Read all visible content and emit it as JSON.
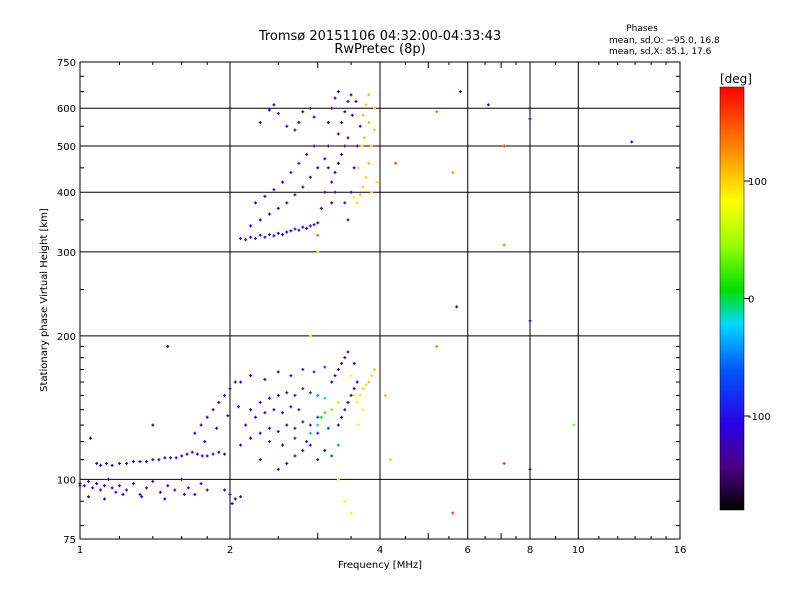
{
  "chart_data": {
    "type": "scatter",
    "title": "Tromsø 20151106 04:32:00-04:33:43",
    "subtitle": "RwPretec (8p)",
    "xlabel": "Frequency [MHz]",
    "ylabel": "Stationary phase Virtual Height [km]",
    "x_scale": "log",
    "y_scale": "log",
    "xlim": [
      1,
      16
    ],
    "ylim": [
      75,
      750
    ],
    "x_ticks": [
      1,
      2,
      4,
      6,
      8,
      10,
      16
    ],
    "x_tick_labels": [
      "1",
      "2",
      "4",
      "6",
      "8",
      "10",
      "16"
    ],
    "x_minor_ticks": [
      3,
      5,
      7
    ],
    "y_ticks": [
      75,
      100,
      200,
      300,
      400,
      500,
      600,
      750
    ],
    "y_tick_labels": [
      "75",
      "100",
      "200",
      "300",
      "400",
      "500",
      "600",
      "750"
    ],
    "grid": true,
    "stats": {
      "title": "Phases",
      "line1": "mean, sd,O: −95.0, 16.8",
      "line2": "mean, sd,X:  85.1, 17.6"
    },
    "colorbar": {
      "label": "[deg]",
      "range": [
        -180,
        180
      ],
      "ticks": [
        100,
        0,
        -100
      ],
      "tick_labels": [
        "100",
        "0",
        "-100"
      ],
      "colormap": "rainbow: black-purple-blue-cyan-green-yellow-orange-red"
    },
    "point_encoding": "[frequency_MHz, virtual_height_km, phase_deg]",
    "points": [
      [
        1.0,
        98,
        -110
      ],
      [
        1.02,
        97,
        -108
      ],
      [
        1.04,
        99,
        -112
      ],
      [
        1.06,
        96,
        -105
      ],
      [
        1.08,
        98,
        -110
      ],
      [
        1.1,
        95,
        -100
      ],
      [
        1.12,
        97,
        -115
      ],
      [
        1.14,
        100,
        -108
      ],
      [
        1.16,
        96,
        -112
      ],
      [
        1.18,
        94,
        -104
      ],
      [
        1.2,
        97,
        -110
      ],
      [
        1.24,
        95,
        -108
      ],
      [
        1.28,
        98,
        -115
      ],
      [
        1.32,
        93,
        -102
      ],
      [
        1.36,
        96,
        -110
      ],
      [
        1.4,
        99,
        -112
      ],
      [
        1.45,
        94,
        -106
      ],
      [
        1.5,
        97,
        -118
      ],
      [
        1.55,
        95,
        -110
      ],
      [
        1.6,
        100,
        -105
      ],
      [
        1.65,
        96,
        -112
      ],
      [
        1.7,
        93,
        -108
      ],
      [
        1.75,
        98,
        -115
      ],
      [
        1.8,
        95,
        -110
      ],
      [
        1.04,
        92,
        -112
      ],
      [
        1.12,
        91,
        -108
      ],
      [
        1.22,
        93,
        -110
      ],
      [
        1.33,
        92,
        -106
      ],
      [
        1.48,
        91,
        -115
      ],
      [
        1.62,
        93,
        -110
      ],
      [
        2.0,
        93,
        -112
      ],
      [
        2.05,
        91,
        -108
      ],
      [
        2.1,
        92,
        -110
      ],
      [
        2.02,
        89,
        -115
      ],
      [
        1.95,
        95,
        -105
      ],
      [
        1.08,
        108,
        -110
      ],
      [
        1.1,
        107,
        -108
      ],
      [
        1.13,
        108,
        -112
      ],
      [
        1.16,
        107,
        -110
      ],
      [
        1.2,
        108,
        -105
      ],
      [
        1.24,
        108,
        -110
      ],
      [
        1.28,
        109,
        -112
      ],
      [
        1.32,
        109,
        -108
      ],
      [
        1.36,
        109,
        -110
      ],
      [
        1.4,
        110,
        -112
      ],
      [
        1.44,
        110,
        -108
      ],
      [
        1.48,
        111,
        -110
      ],
      [
        1.52,
        111,
        -112
      ],
      [
        1.56,
        111,
        -105
      ],
      [
        1.6,
        112,
        -110
      ],
      [
        1.64,
        113,
        -108
      ],
      [
        1.68,
        114,
        -112
      ],
      [
        1.72,
        113,
        -110
      ],
      [
        1.76,
        112,
        -108
      ],
      [
        1.8,
        112,
        -110
      ],
      [
        1.85,
        113,
        -112
      ],
      [
        1.9,
        114,
        -108
      ],
      [
        1.95,
        113,
        -110
      ],
      [
        1.7,
        125,
        -108
      ],
      [
        1.75,
        130,
        -112
      ],
      [
        1.8,
        135,
        -110
      ],
      [
        1.85,
        140,
        -105
      ],
      [
        1.9,
        145,
        -110
      ],
      [
        1.95,
        150,
        -112
      ],
      [
        2.0,
        155,
        -108
      ],
      [
        2.05,
        160,
        -110
      ],
      [
        1.78,
        120,
        -112
      ],
      [
        1.88,
        128,
        -108
      ],
      [
        1.98,
        136,
        -110
      ],
      [
        2.08,
        142,
        -112
      ],
      [
        2.1,
        118,
        -110
      ],
      [
        2.2,
        122,
        -108
      ],
      [
        2.3,
        125,
        -112
      ],
      [
        2.4,
        128,
        -110
      ],
      [
        2.5,
        126,
        -105
      ],
      [
        2.6,
        130,
        -110
      ],
      [
        2.7,
        128,
        -100
      ],
      [
        2.8,
        132,
        -95
      ],
      [
        2.9,
        130,
        -90
      ],
      [
        3.0,
        135,
        -70
      ],
      [
        2.2,
        140,
        -110
      ],
      [
        2.3,
        145,
        -108
      ],
      [
        2.4,
        148,
        -112
      ],
      [
        2.5,
        150,
        -110
      ],
      [
        2.6,
        152,
        -100
      ],
      [
        2.7,
        150,
        -95
      ],
      [
        2.8,
        155,
        -85
      ],
      [
        2.9,
        152,
        -70
      ],
      [
        3.0,
        150,
        -40
      ],
      [
        3.1,
        148,
        -20
      ],
      [
        2.1,
        160,
        -110
      ],
      [
        2.2,
        165,
        -108
      ],
      [
        2.35,
        162,
        -112
      ],
      [
        2.5,
        168,
        -110
      ],
      [
        2.65,
        165,
        -100
      ],
      [
        2.8,
        170,
        -90
      ],
      [
        2.95,
        168,
        -80
      ],
      [
        3.1,
        172,
        -60
      ],
      [
        2.15,
        130,
        -110
      ],
      [
        2.25,
        135,
        -112
      ],
      [
        2.35,
        138,
        -108
      ],
      [
        2.45,
        140,
        -110
      ],
      [
        2.55,
        138,
        -105
      ],
      [
        2.65,
        142,
        -100
      ],
      [
        2.75,
        140,
        -95
      ],
      [
        2.4,
        120,
        -110
      ],
      [
        2.55,
        118,
        -108
      ],
      [
        2.7,
        122,
        -100
      ],
      [
        2.85,
        120,
        -95
      ],
      [
        3.0,
        125,
        -85
      ],
      [
        3.15,
        128,
        -70
      ],
      [
        3.3,
        130,
        -120
      ],
      [
        3.35,
        135,
        -125
      ],
      [
        3.4,
        140,
        -120
      ],
      [
        3.45,
        145,
        -130
      ],
      [
        3.5,
        150,
        -125
      ],
      [
        3.55,
        155,
        -120
      ],
      [
        3.6,
        160,
        -110
      ],
      [
        3.2,
        160,
        -130
      ],
      [
        3.25,
        165,
        -125
      ],
      [
        3.3,
        170,
        -120
      ],
      [
        3.35,
        175,
        -130
      ],
      [
        3.4,
        180,
        -125
      ],
      [
        3.45,
        185,
        -135
      ],
      [
        3.55,
        175,
        -120
      ],
      [
        3.6,
        145,
        80
      ],
      [
        3.65,
        150,
        90
      ],
      [
        3.7,
        155,
        100
      ],
      [
        3.75,
        158,
        95
      ],
      [
        3.7,
        140,
        85
      ],
      [
        3.8,
        160,
        110
      ],
      [
        3.85,
        165,
        100
      ],
      [
        3.62,
        130,
        90
      ],
      [
        3.9,
        170,
        105
      ],
      [
        3.5,
        165,
        80
      ],
      [
        3.55,
        150,
        75
      ],
      [
        3.3,
        145,
        60
      ],
      [
        3.2,
        140,
        40
      ],
      [
        3.1,
        138,
        20
      ],
      [
        3.05,
        135,
        10
      ],
      [
        3.0,
        130,
        -10
      ],
      [
        2.9,
        125,
        -30
      ],
      [
        1.5,
        190,
        -120
      ],
      [
        1.4,
        130,
        -115
      ],
      [
        1.05,
        122,
        -108
      ],
      [
        3.0,
        110,
        -90
      ],
      [
        3.1,
        115,
        -100
      ],
      [
        3.2,
        112,
        -60
      ],
      [
        3.3,
        118,
        -40
      ],
      [
        2.6,
        108,
        -110
      ],
      [
        2.7,
        112,
        -100
      ],
      [
        2.8,
        115,
        -95
      ],
      [
        2.9,
        118,
        -85
      ],
      [
        2.5,
        105,
        -112
      ],
      [
        2.3,
        110,
        -110
      ],
      [
        3.3,
        100,
        60
      ],
      [
        3.4,
        90,
        80
      ],
      [
        3.5,
        85,
        90
      ],
      [
        4.2,
        110,
        100
      ],
      [
        4.1,
        150,
        110
      ],
      [
        5.2,
        190,
        130
      ],
      [
        5.6,
        85,
        160
      ],
      [
        7.1,
        108,
        160
      ],
      [
        8.0,
        105,
        -110
      ],
      [
        9.8,
        130,
        40
      ],
      [
        2.1,
        320,
        -110
      ],
      [
        2.15,
        318,
        -112
      ],
      [
        2.2,
        322,
        -108
      ],
      [
        2.25,
        320,
        -110
      ],
      [
        2.3,
        325,
        -112
      ],
      [
        2.35,
        322,
        -108
      ],
      [
        2.4,
        326,
        -110
      ],
      [
        2.45,
        324,
        -105
      ],
      [
        2.5,
        328,
        -110
      ],
      [
        2.55,
        326,
        -112
      ],
      [
        2.6,
        330,
        -108
      ],
      [
        2.65,
        332,
        -110
      ],
      [
        2.7,
        335,
        -100
      ],
      [
        2.75,
        333,
        -105
      ],
      [
        2.8,
        338,
        -110
      ],
      [
        2.85,
        336,
        -108
      ],
      [
        2.9,
        340,
        -100
      ],
      [
        2.95,
        342,
        -95
      ],
      [
        3.0,
        345,
        -110
      ],
      [
        2.2,
        340,
        -110
      ],
      [
        2.3,
        350,
        -112
      ],
      [
        2.4,
        360,
        -108
      ],
      [
        2.5,
        370,
        -110
      ],
      [
        2.6,
        380,
        -105
      ],
      [
        2.7,
        395,
        -100
      ],
      [
        2.8,
        410,
        -95
      ],
      [
        2.9,
        430,
        -110
      ],
      [
        3.0,
        450,
        -112
      ],
      [
        3.1,
        470,
        -108
      ],
      [
        2.25,
        380,
        -110
      ],
      [
        2.35,
        392,
        -108
      ],
      [
        2.45,
        405,
        -112
      ],
      [
        2.55,
        420,
        -110
      ],
      [
        2.65,
        440,
        -100
      ],
      [
        2.75,
        460,
        -95
      ],
      [
        2.85,
        480,
        -108
      ],
      [
        2.95,
        500,
        -112
      ],
      [
        2.7,
        540,
        -110
      ],
      [
        2.75,
        560,
        -115
      ],
      [
        2.8,
        590,
        -120
      ],
      [
        2.9,
        600,
        -118
      ],
      [
        2.95,
        575,
        -110
      ],
      [
        2.6,
        550,
        -112
      ],
      [
        3.2,
        420,
        -130
      ],
      [
        3.25,
        440,
        -135
      ],
      [
        3.3,
        460,
        -130
      ],
      [
        3.35,
        480,
        -140
      ],
      [
        3.4,
        500,
        -135
      ],
      [
        3.45,
        520,
        -130
      ],
      [
        3.2,
        380,
        -125
      ],
      [
        3.25,
        400,
        -130
      ],
      [
        3.3,
        530,
        -135
      ],
      [
        3.35,
        560,
        -130
      ],
      [
        3.4,
        590,
        -140
      ],
      [
        3.45,
        620,
        -135
      ],
      [
        3.5,
        640,
        -130
      ],
      [
        3.2,
        600,
        -135
      ],
      [
        3.25,
        630,
        -130
      ],
      [
        3.3,
        650,
        -140
      ],
      [
        3.15,
        560,
        -135
      ],
      [
        3.15,
        500,
        -130
      ],
      [
        3.15,
        450,
        -125
      ],
      [
        3.1,
        400,
        -130
      ],
      [
        3.05,
        370,
        -120
      ],
      [
        3.5,
        400,
        -110
      ],
      [
        3.55,
        450,
        -115
      ],
      [
        3.6,
        500,
        -112
      ],
      [
        3.65,
        550,
        -108
      ],
      [
        3.52,
        580,
        -110
      ],
      [
        3.58,
        620,
        -112
      ],
      [
        3.4,
        380,
        -120
      ],
      [
        3.45,
        350,
        -118
      ],
      [
        3.6,
        380,
        100
      ],
      [
        3.65,
        395,
        110
      ],
      [
        3.7,
        410,
        105
      ],
      [
        3.75,
        430,
        100
      ],
      [
        3.8,
        460,
        110
      ],
      [
        3.85,
        500,
        100
      ],
      [
        3.9,
        540,
        105
      ],
      [
        3.7,
        580,
        110
      ],
      [
        3.75,
        610,
        100
      ],
      [
        3.8,
        640,
        108
      ],
      [
        3.62,
        450,
        95
      ],
      [
        3.68,
        500,
        100
      ],
      [
        3.72,
        520,
        110
      ],
      [
        3.55,
        390,
        90
      ],
      [
        3.85,
        400,
        100
      ],
      [
        3.95,
        420,
        95
      ],
      [
        3.8,
        560,
        115
      ],
      [
        3.9,
        600,
        105
      ],
      [
        2.4,
        595,
        -120
      ],
      [
        2.45,
        610,
        -115
      ],
      [
        2.5,
        585,
        -125
      ],
      [
        2.3,
        560,
        -118
      ],
      [
        5.2,
        590,
        140
      ],
      [
        4.3,
        460,
        150
      ],
      [
        5.6,
        440,
        120
      ],
      [
        5.8,
        650,
        -110
      ],
      [
        6.6,
        610,
        -105
      ],
      [
        8.0,
        570,
        -110
      ],
      [
        7.1,
        500,
        160
      ],
      [
        7.1,
        310,
        20
      ],
      [
        12.8,
        510,
        -100
      ],
      [
        5.7,
        230,
        -110
      ],
      [
        8.0,
        215,
        -130
      ],
      [
        3.0,
        300,
        60
      ],
      [
        3.0,
        325,
        140
      ],
      [
        2.9,
        200,
        90
      ],
      [
        1.0,
        97,
        -110
      ]
    ]
  }
}
